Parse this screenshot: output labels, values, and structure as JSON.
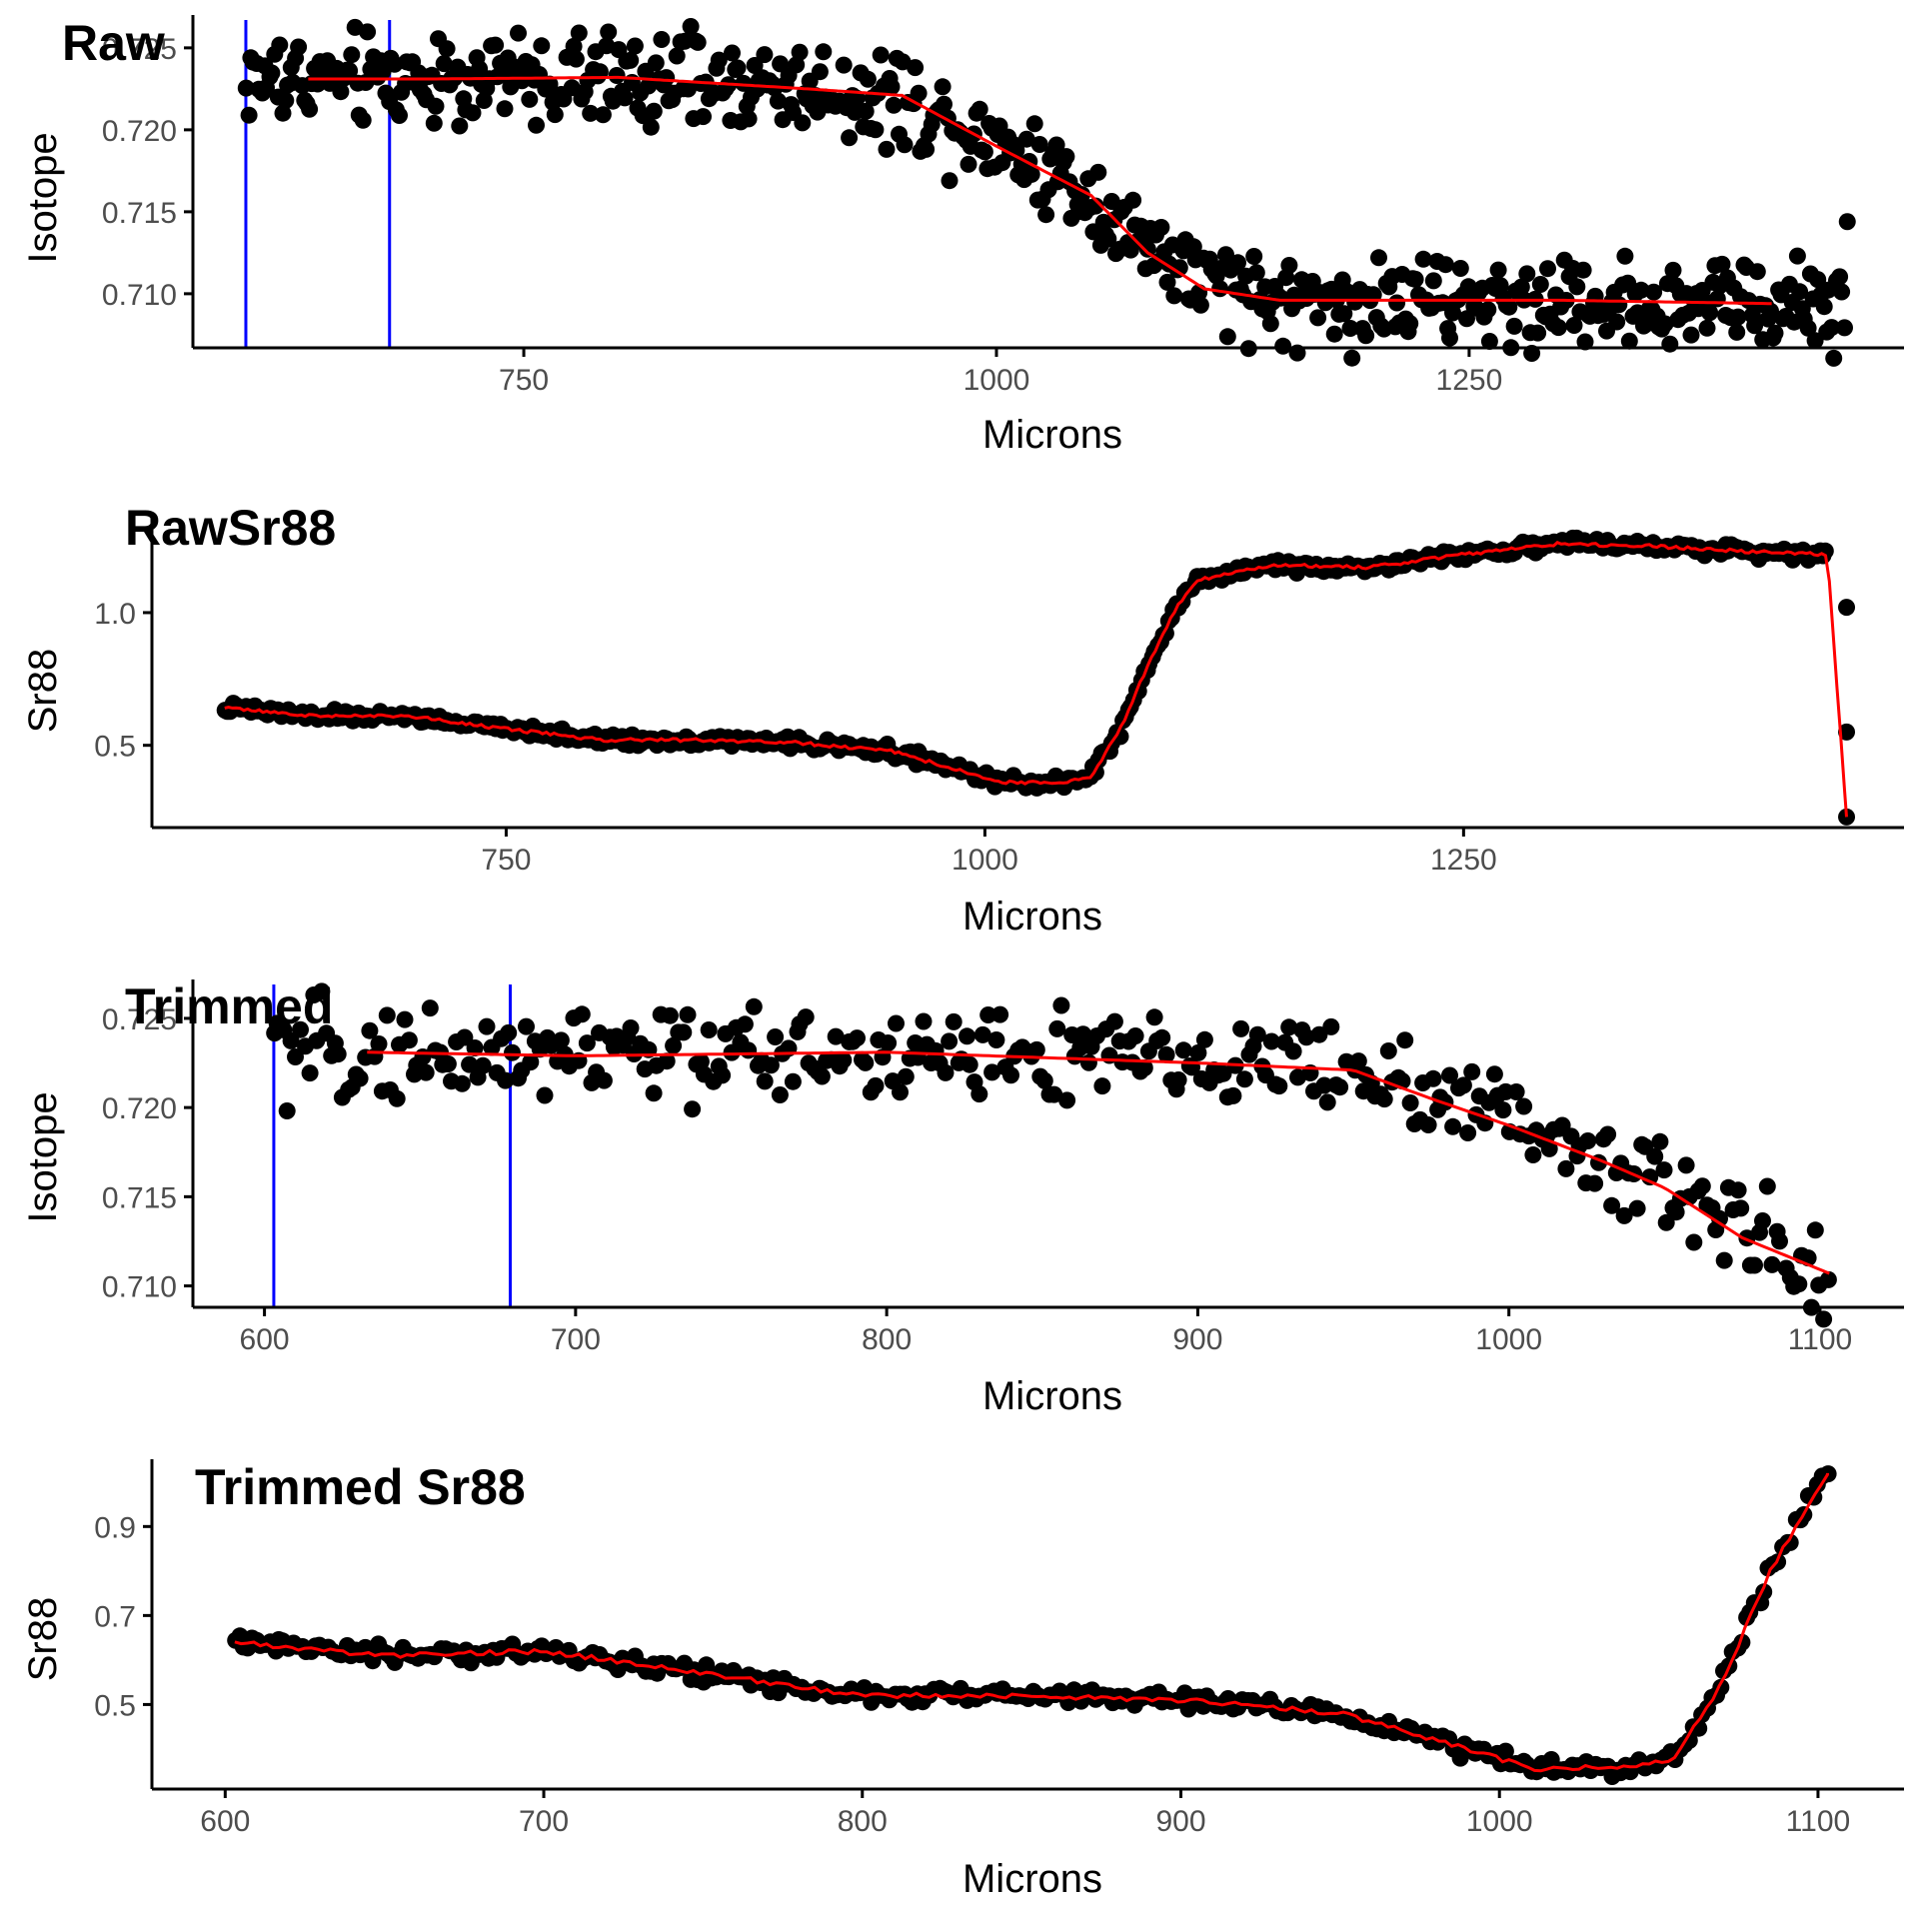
{
  "colors": {
    "points": "#000000",
    "smooth_line": "#ff0000",
    "trim_markers": "#0000ff",
    "axis": "#000000",
    "tick_label": "#4d4d4d"
  },
  "chart_data": [
    {
      "id": "raw",
      "type": "scatter",
      "title": "Raw",
      "xlabel": "Microns",
      "ylabel": "Isotope",
      "x_ticks": [
        750,
        1000,
        1250
      ],
      "y_ticks": [
        0.71,
        0.715,
        0.72,
        0.725
      ],
      "y_tick_labels": [
        "0.710",
        "0.715",
        "0.720",
        "0.725"
      ],
      "xlim": [
        575,
        1480
      ],
      "ylim": [
        0.7067,
        0.7267
      ],
      "vlines": [
        603,
        679
      ],
      "point_x_range": [
        603,
        1450
      ],
      "point_step": 1.4,
      "noise": 0.0014,
      "point_profile": [
        [
          603,
          0.7231
        ],
        [
          700,
          0.7231
        ],
        [
          800,
          0.7231
        ],
        [
          900,
          0.7226
        ],
        [
          950,
          0.7218
        ],
        [
          1000,
          0.7195
        ],
        [
          1050,
          0.716
        ],
        [
          1080,
          0.713
        ],
        [
          1110,
          0.7105
        ],
        [
          1150,
          0.7096
        ],
        [
          1200,
          0.7095
        ],
        [
          1300,
          0.7095
        ],
        [
          1400,
          0.7095
        ],
        [
          1450,
          0.7093
        ]
      ],
      "smooth_profile": [
        [
          636,
          0.7231
        ],
        [
          700,
          0.7231
        ],
        [
          800,
          0.7232
        ],
        [
          900,
          0.7225
        ],
        [
          950,
          0.7221
        ],
        [
          1000,
          0.719
        ],
        [
          1050,
          0.716
        ],
        [
          1080,
          0.7125
        ],
        [
          1110,
          0.7103
        ],
        [
          1150,
          0.7096
        ],
        [
          1200,
          0.7096
        ],
        [
          1300,
          0.7096
        ],
        [
          1410,
          0.7094
        ]
      ],
      "extra_points": [
        [
          1450,
          0.7144
        ]
      ]
    },
    {
      "id": "rawsr88",
      "type": "scatter",
      "title": "RawSr88",
      "xlabel": "Microns",
      "ylabel": "Sr88",
      "x_ticks": [
        750,
        1000,
        1250
      ],
      "y_ticks": [
        0.5,
        1.0
      ],
      "y_tick_labels": [
        "0.5",
        "1.0"
      ],
      "xlim": [
        565,
        1480
      ],
      "ylim": [
        0.19,
        1.35
      ],
      "vlines": [],
      "point_x_range": [
        603,
        1440
      ],
      "point_step": 1.4,
      "noise": 0.01,
      "point_profile": [
        [
          603,
          0.64
        ],
        [
          650,
          0.61
        ],
        [
          700,
          0.61
        ],
        [
          740,
          0.57
        ],
        [
          800,
          0.52
        ],
        [
          850,
          0.52
        ],
        [
          900,
          0.51
        ],
        [
          950,
          0.48
        ],
        [
          990,
          0.4
        ],
        [
          1010,
          0.36
        ],
        [
          1040,
          0.36
        ],
        [
          1055,
          0.38
        ],
        [
          1070,
          0.55
        ],
        [
          1085,
          0.8
        ],
        [
          1100,
          1.02
        ],
        [
          1110,
          1.12
        ],
        [
          1150,
          1.18
        ],
        [
          1200,
          1.17
        ],
        [
          1250,
          1.22
        ],
        [
          1300,
          1.26
        ],
        [
          1350,
          1.25
        ],
        [
          1400,
          1.23
        ],
        [
          1440,
          1.22
        ]
      ],
      "smooth_profile": [
        [
          603,
          0.64
        ],
        [
          650,
          0.61
        ],
        [
          700,
          0.61
        ],
        [
          740,
          0.57
        ],
        [
          800,
          0.52
        ],
        [
          850,
          0.52
        ],
        [
          900,
          0.51
        ],
        [
          950,
          0.48
        ],
        [
          990,
          0.4
        ],
        [
          1010,
          0.36
        ],
        [
          1040,
          0.36
        ],
        [
          1055,
          0.38
        ],
        [
          1070,
          0.55
        ],
        [
          1085,
          0.8
        ],
        [
          1100,
          1.02
        ],
        [
          1110,
          1.12
        ],
        [
          1150,
          1.18
        ],
        [
          1200,
          1.17
        ],
        [
          1250,
          1.22
        ],
        [
          1300,
          1.26
        ],
        [
          1350,
          1.25
        ],
        [
          1400,
          1.23
        ],
        [
          1440,
          1.22
        ],
        [
          1450,
          0.23
        ]
      ],
      "extra_points": [
        [
          1450,
          1.02
        ],
        [
          1450,
          0.55
        ],
        [
          1450,
          0.23
        ]
      ]
    },
    {
      "id": "trimmed",
      "type": "scatter",
      "title": "Trimmed",
      "xlabel": "Microns",
      "ylabel": "Isotope",
      "x_ticks": [
        600,
        700,
        800,
        900,
        1000,
        1100
      ],
      "y_ticks": [
        0.71,
        0.715,
        0.72,
        0.725
      ],
      "y_tick_labels": [
        "0.710",
        "0.715",
        "0.720",
        "0.725"
      ],
      "xlim": [
        577,
        1127
      ],
      "ylim": [
        0.7088,
        0.7269
      ],
      "vlines": [
        603,
        679
      ],
      "point_x_range": [
        603,
        1103
      ],
      "point_step": 1.4,
      "noise": 0.0013,
      "point_profile": [
        [
          603,
          0.7231
        ],
        [
          700,
          0.723
        ],
        [
          800,
          0.7231
        ],
        [
          900,
          0.7225
        ],
        [
          950,
          0.7222
        ],
        [
          975,
          0.7208
        ],
        [
          1000,
          0.7195
        ],
        [
          1030,
          0.7172
        ],
        [
          1050,
          0.716
        ],
        [
          1075,
          0.713
        ],
        [
          1103,
          0.7107
        ]
      ],
      "smooth_profile": [
        [
          633,
          0.7231
        ],
        [
          700,
          0.7229
        ],
        [
          800,
          0.7231
        ],
        [
          900,
          0.7225
        ],
        [
          950,
          0.7221
        ],
        [
          975,
          0.7205
        ],
        [
          1000,
          0.719
        ],
        [
          1030,
          0.717
        ],
        [
          1050,
          0.7155
        ],
        [
          1075,
          0.7127
        ],
        [
          1103,
          0.7107
        ]
      ],
      "extra_points": []
    },
    {
      "id": "trimmedsr88",
      "type": "scatter",
      "title": "Trimmed Sr88",
      "xlabel": "Microns",
      "ylabel": "Sr88",
      "x_ticks": [
        600,
        700,
        800,
        900,
        1000,
        1100
      ],
      "y_ticks": [
        0.5,
        0.7,
        0.9
      ],
      "y_tick_labels": [
        "0.5",
        "0.7",
        "0.9"
      ],
      "xlim": [
        577,
        1127
      ],
      "ylim": [
        0.31,
        1.04
      ],
      "vlines": [],
      "point_x_range": [
        603,
        1103
      ],
      "point_step": 1.4,
      "noise": 0.009,
      "point_profile": [
        [
          603,
          0.64
        ],
        [
          650,
          0.61
        ],
        [
          700,
          0.62
        ],
        [
          740,
          0.58
        ],
        [
          800,
          0.52
        ],
        [
          850,
          0.52
        ],
        [
          900,
          0.51
        ],
        [
          950,
          0.48
        ],
        [
          990,
          0.4
        ],
        [
          1010,
          0.355
        ],
        [
          1040,
          0.36
        ],
        [
          1055,
          0.38
        ],
        [
          1070,
          0.55
        ],
        [
          1085,
          0.8
        ],
        [
          1103,
          1.02
        ]
      ],
      "smooth_profile": [
        [
          603,
          0.64
        ],
        [
          650,
          0.61
        ],
        [
          700,
          0.62
        ],
        [
          740,
          0.58
        ],
        [
          800,
          0.52
        ],
        [
          850,
          0.52
        ],
        [
          900,
          0.51
        ],
        [
          950,
          0.48
        ],
        [
          990,
          0.4
        ],
        [
          1010,
          0.355
        ],
        [
          1040,
          0.36
        ],
        [
          1055,
          0.38
        ],
        [
          1070,
          0.55
        ],
        [
          1085,
          0.8
        ],
        [
          1103,
          1.02
        ]
      ],
      "extra_points": []
    }
  ]
}
